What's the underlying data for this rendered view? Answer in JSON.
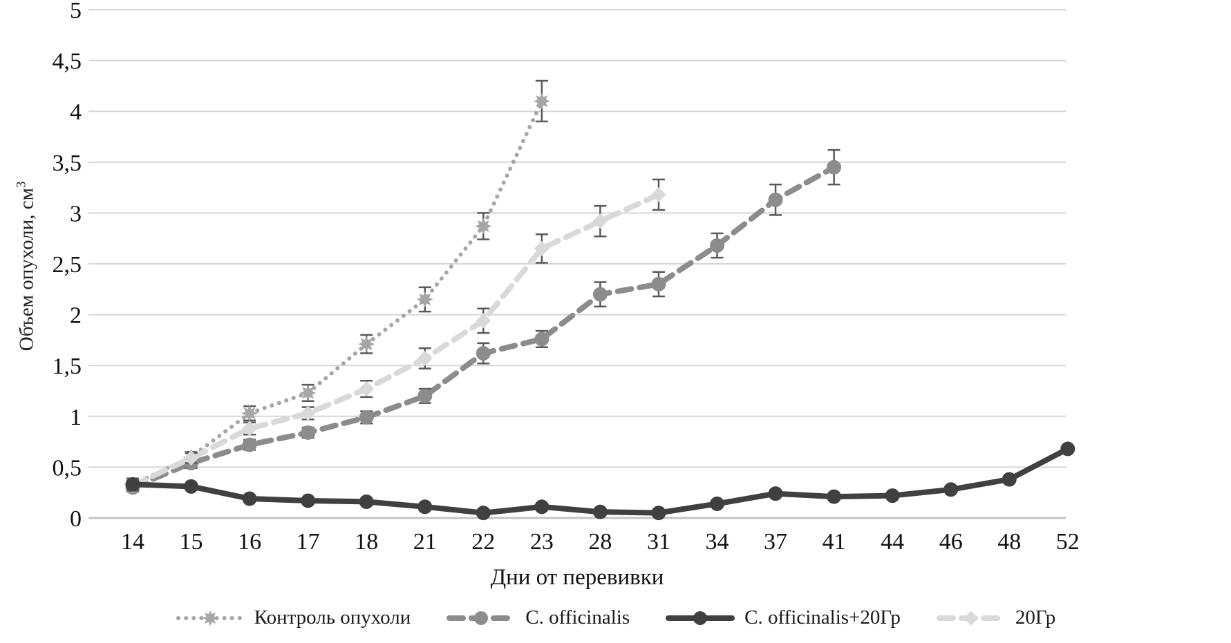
{
  "chart_data": {
    "type": "line",
    "title": "",
    "xlabel": "Дни от перевивки",
    "ylabel_base": "Объем опухоли, см",
    "ylabel_sup": "3",
    "ylim": [
      0,
      5
    ],
    "y_tick_step": 0.5,
    "y_tick_labels": [
      "0",
      "0,5",
      "1",
      "1,5",
      "2",
      "2,5",
      "3",
      "3,5",
      "4",
      "4,5",
      "5"
    ],
    "grid": "horizontal",
    "legend_position": "bottom",
    "categories": [
      "14",
      "15",
      "16",
      "17",
      "18",
      "21",
      "22",
      "23",
      "28",
      "31",
      "34",
      "37",
      "41",
      "44",
      "46",
      "48",
      "52"
    ],
    "series": [
      {
        "name": "Контроль опухоли",
        "line": "dotted",
        "marker": "star",
        "color": "#a6a6a6",
        "values": [
          0.33,
          0.6,
          1.03,
          1.23,
          1.71,
          2.15,
          2.87,
          4.1,
          null,
          null,
          null,
          null,
          null,
          null,
          null,
          null,
          null
        ],
        "errors": [
          0.06,
          0.05,
          0.07,
          0.08,
          0.09,
          0.12,
          0.13,
          0.2,
          null,
          null,
          null,
          null,
          null,
          null,
          null,
          null,
          null
        ]
      },
      {
        "name": "C. officinalis",
        "line": "dashed",
        "marker": "circle",
        "color": "#8c8c8c",
        "values": [
          0.3,
          0.54,
          0.72,
          0.84,
          0.99,
          1.2,
          1.62,
          1.76,
          2.2,
          2.3,
          2.68,
          3.13,
          3.45,
          null,
          null,
          null,
          null
        ],
        "errors": [
          0.04,
          0.05,
          0.05,
          0.05,
          0.06,
          0.07,
          0.1,
          0.08,
          0.12,
          0.12,
          0.12,
          0.15,
          0.17,
          null,
          null,
          null,
          null
        ]
      },
      {
        "name": "C. officinalis+20Гр",
        "line": "solid",
        "marker": "circle",
        "color": "#404040",
        "values": [
          0.33,
          0.31,
          0.19,
          0.17,
          0.16,
          0.11,
          0.05,
          0.11,
          0.06,
          0.05,
          0.14,
          0.24,
          0.21,
          0.22,
          0.28,
          0.38,
          0.68
        ],
        "errors": [
          null,
          null,
          null,
          null,
          null,
          null,
          null,
          null,
          null,
          null,
          null,
          null,
          null,
          null,
          null,
          null,
          null
        ]
      },
      {
        "name": "20Гр",
        "line": "dashed",
        "marker": "diamond",
        "color": "#d9d9d9",
        "values": [
          0.32,
          0.59,
          0.88,
          1.03,
          1.27,
          1.57,
          1.94,
          2.65,
          2.92,
          3.18,
          null,
          null,
          null,
          null,
          null,
          null,
          null
        ],
        "errors": [
          0.05,
          0.05,
          0.06,
          0.06,
          0.08,
          0.1,
          0.12,
          0.14,
          0.15,
          0.15,
          null,
          null,
          null,
          null,
          null,
          null,
          null
        ]
      }
    ],
    "error_bar_color": "#595959",
    "gridline_color": "#d6d6d6",
    "zero_line_color": "#c4c4c4"
  }
}
